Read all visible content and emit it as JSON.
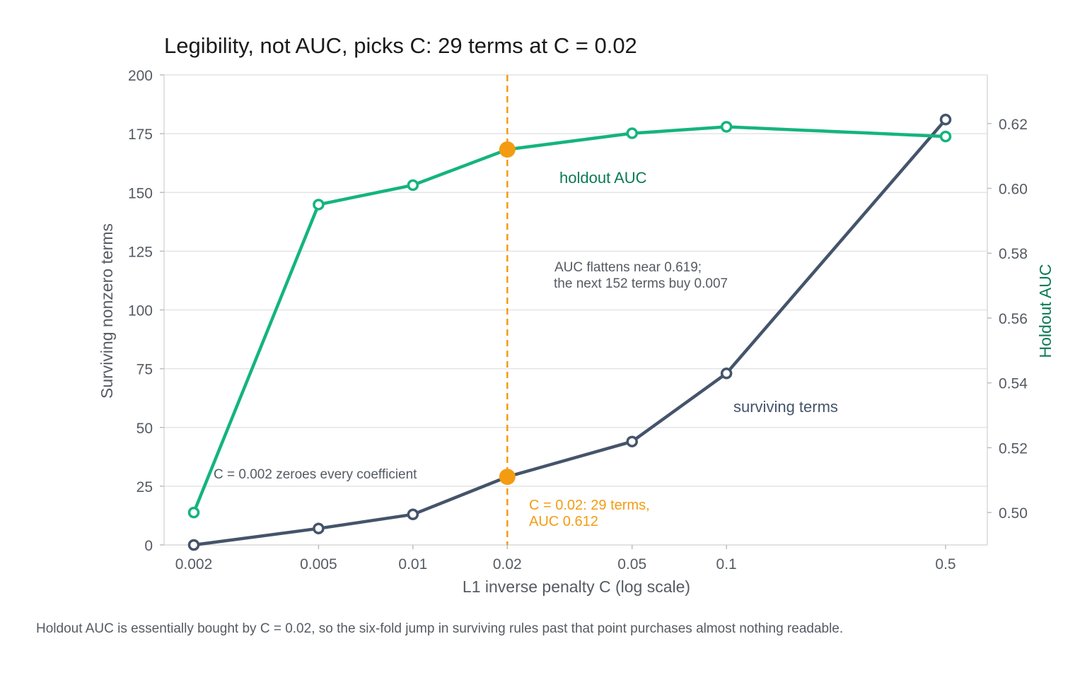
{
  "caption": "Holdout AUC is essentially bought by C = 0.02, so the six-fold jump in surviving rules past that point purchases almost nothing readable.",
  "chart_data": {
    "type": "line",
    "title": "Legibility, not AUC, picks C: 29 terms at C = 0.02",
    "xlabel": "L1 inverse penalty C (log scale)",
    "ylabel": "Surviving nonzero terms",
    "y2label": "Holdout AUC",
    "x_scale": "log",
    "x": [
      0.002,
      0.005,
      0.01,
      0.02,
      0.05,
      0.1,
      0.5
    ],
    "x_tick_labels": [
      "0.002",
      "0.005",
      "0.01",
      "0.02",
      "0.05",
      "0.1",
      "0.5"
    ],
    "ylim": [
      0,
      200
    ],
    "y_ticks": [
      0,
      25,
      50,
      75,
      100,
      125,
      150,
      175,
      200
    ],
    "y2lim": [
      0.49,
      0.635
    ],
    "y2_ticks": [
      0.5,
      0.52,
      0.54,
      0.56,
      0.58,
      0.6,
      0.62
    ],
    "y2_tick_labels": [
      "0.50",
      "0.52",
      "0.54",
      "0.56",
      "0.58",
      "0.60",
      "0.62"
    ],
    "grid": true,
    "series": [
      {
        "name": "surviving terms",
        "axis": "left",
        "color": "#44546a",
        "values": [
          0,
          7,
          13,
          29,
          44,
          73,
          181
        ]
      },
      {
        "name": "holdout AUC",
        "axis": "right",
        "color": "#14b47f",
        "label_color": "#0b7a55",
        "values": [
          0.5,
          0.595,
          0.601,
          0.612,
          0.617,
          0.619,
          0.616
        ]
      }
    ],
    "highlight": {
      "x": 0.02,
      "terms": 29,
      "auc": 0.612,
      "color": "#f39c12",
      "label": [
        "C = 0.02: 29 terms,",
        "AUC 0.612"
      ]
    },
    "annotations": {
      "zero_note": "C = 0.002 zeroes every coefficient",
      "flat_note": [
        "AUC flattens near 0.619;",
        "the next 152 terms buy 0.007"
      ]
    }
  }
}
